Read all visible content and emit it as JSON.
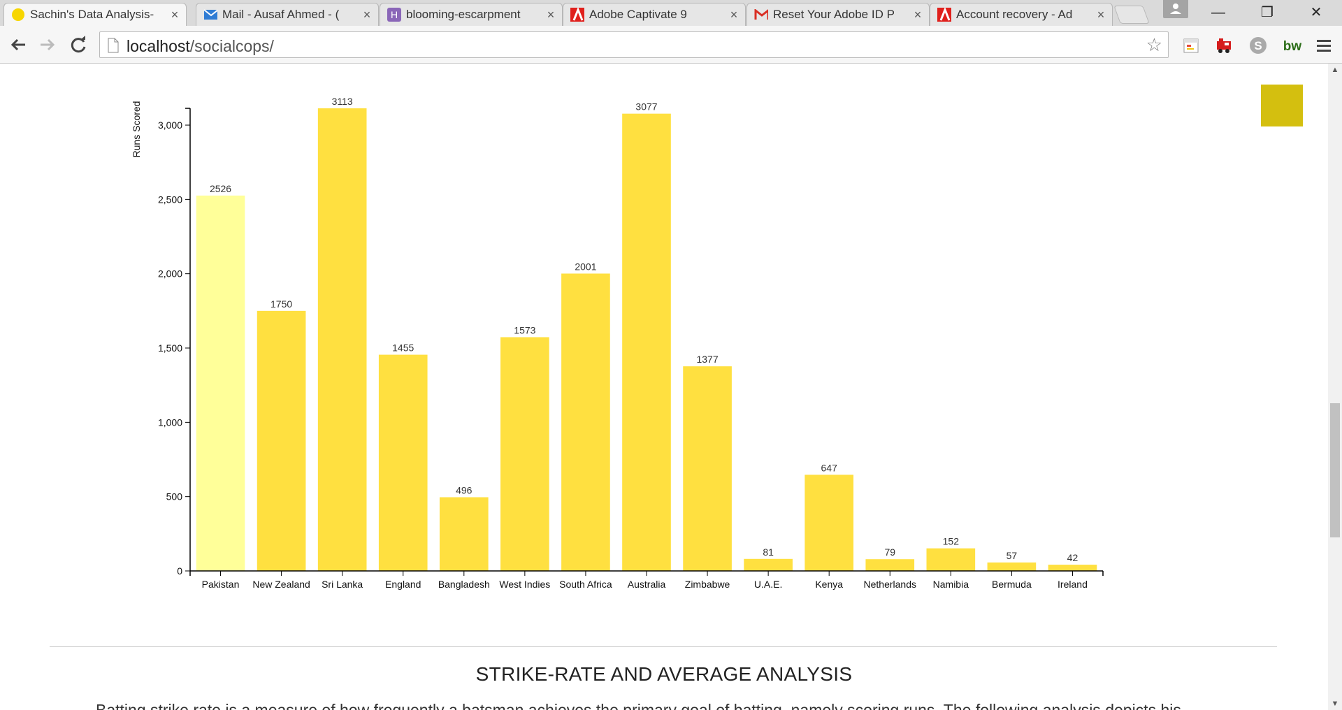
{
  "browser": {
    "tabs": [
      {
        "title": "Sachin's Data Analysis-",
        "icon": "circle-yellow-icon",
        "active": true
      },
      {
        "title": "Mail - Ausaf Ahmed - (",
        "icon": "mail-icon",
        "active": false
      },
      {
        "title": "blooming-escarpment",
        "icon": "heroku-icon",
        "active": false
      },
      {
        "title": "Adobe Captivate 9",
        "icon": "adobe-icon",
        "active": false
      },
      {
        "title": "Reset Your Adobe ID P",
        "icon": "gmail-icon",
        "active": false
      },
      {
        "title": "Account recovery - Ad",
        "icon": "adobe-icon",
        "active": false
      }
    ],
    "close_glyph": "×",
    "address": {
      "host": "localhost",
      "path": "/socialcops/"
    },
    "window_controls": {
      "minimize": "—",
      "restore": "❐",
      "close": "✕"
    },
    "extensions": [
      "calendar-icon",
      "train-icon",
      "skype-icon",
      "bw-icon",
      "menu-icon"
    ]
  },
  "chart_data": {
    "type": "bar",
    "ylabel": "Runs Scored",
    "ylim": [
      0,
      3113
    ],
    "yticks": [
      0,
      500,
      1000,
      1500,
      2000,
      2500,
      3000
    ],
    "ytick_labels": [
      "0",
      "500",
      "1,000",
      "1,500",
      "2,000",
      "2,500",
      "3,000"
    ],
    "categories": [
      "Pakistan",
      "New Zealand",
      "Sri Lanka",
      "England",
      "Bangladesh",
      "West Indies",
      "South Africa",
      "Australia",
      "Zimbabwe",
      "U.A.E.",
      "Kenya",
      "Netherlands",
      "Namibia",
      "Bermuda",
      "Ireland"
    ],
    "values": [
      2526,
      1750,
      3113,
      1455,
      496,
      1573,
      2001,
      3077,
      1377,
      81,
      647,
      79,
      152,
      57,
      42
    ],
    "bar_color": "#ffe040",
    "highlight_color": "#ffff99",
    "highlight_index": 0,
    "legend_color": "#d4bf0f"
  },
  "section": {
    "title": "STRIKE-RATE AND AVERAGE ANALYSIS",
    "text": "Batting strike rate is a measure of how frequently a batsman achieves the primary goal of batting, namely scoring runs. The following analysis depicts his"
  }
}
